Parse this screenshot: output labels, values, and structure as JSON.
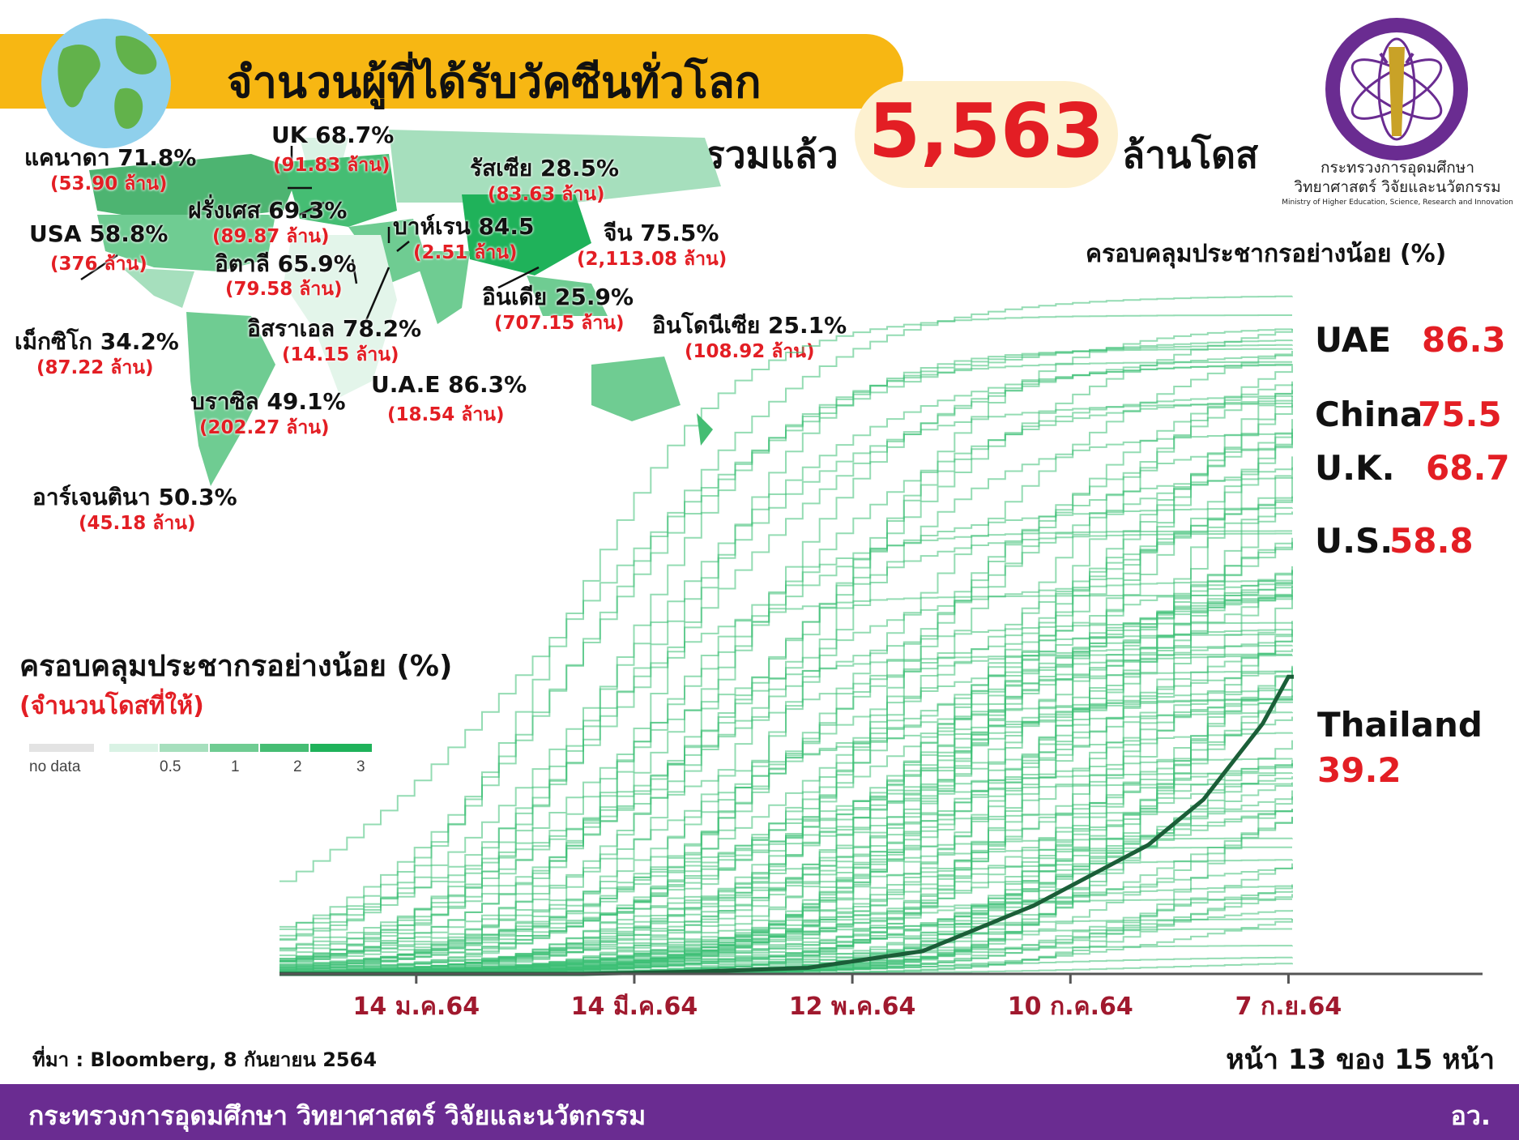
{
  "header": {
    "title": "จำนวนผู้ที่ได้รับวัคซีนทั่วโลก",
    "total_prefix": "รวมแล้ว",
    "total_value": "5,563",
    "total_unit": "ล้านโดส"
  },
  "ministry": {
    "name_th_line1": "กระทรวงการอุดมศึกษา",
    "name_th_line2": "วิทยาศาสตร์ วิจัยและนวัตกรรม",
    "name_en": "Ministry of Higher Education, Science, Research and Innovation"
  },
  "map_labels": [
    {
      "name": "แคนาดา 71.8%",
      "dose": "(53.90 ล้าน)"
    },
    {
      "name": "UK 68.7%",
      "dose": "(91.83 ล้าน)"
    },
    {
      "name": "รัสเซีย 28.5%",
      "dose": "(83.63 ล้าน)"
    },
    {
      "name": "ฝรั่งเศส 69.3%",
      "dose": "(89.87 ล้าน)"
    },
    {
      "name": "USA 58.8%",
      "dose": "(376 ล้าน)"
    },
    {
      "name": "บาห์เรน 84.5",
      "dose": "(2.51 ล้าน)"
    },
    {
      "name": "จีน 75.5%",
      "dose": "(2,113.08 ล้าน)"
    },
    {
      "name": "อิตาลี 65.9%",
      "dose": "(79.58 ล้าน)"
    },
    {
      "name": "อินเดีย 25.9%",
      "dose": "(707.15 ล้าน)"
    },
    {
      "name": "อิสราเอล 78.2%",
      "dose": "(14.15 ล้าน)"
    },
    {
      "name": "อินโดนีเซีย 25.1%",
      "dose": "(108.92 ล้าน)"
    },
    {
      "name": "เม็กซิโก 34.2%",
      "dose": "(87.22 ล้าน)"
    },
    {
      "name": "U.A.E 86.3%",
      "dose": "(18.54 ล้าน)"
    },
    {
      "name": "บราซิล 49.1%",
      "dose": "(202.27 ล้าน)"
    },
    {
      "name": "อาร์เจนตินา 50.3%",
      "dose": "(45.18 ล้าน)"
    }
  ],
  "left_heading": "ครอบคลุมประชากรอย่างน้อย (%)",
  "left_subheading": "(จำนวนโดสที่ให้)",
  "legend": {
    "no_data": "no data",
    "ticks": [
      "0.5",
      "1",
      "2",
      "3"
    ],
    "colors": [
      "#e3e3e3",
      "#d9f2e4",
      "#a6dfbd",
      "#6fcc92",
      "#45bd73",
      "#1fb25a"
    ]
  },
  "right_heading": "ครอบคลุมประชากรอย่างน้อย (%)",
  "highlights": [
    {
      "name": "UAE",
      "value": "86.3"
    },
    {
      "name": "China",
      "value": "75.5"
    },
    {
      "name": "U.K.",
      "value": "68.7"
    },
    {
      "name": "U.S.",
      "value": "58.8"
    },
    {
      "name": "Thailand",
      "value": "39.2"
    }
  ],
  "colors": {
    "title_bar": "#f7b713",
    "accent_red": "#e31e24",
    "footer": "#6a2c91",
    "line": "#3cbf74",
    "thailand_line": "#1b5e38",
    "axis_label": "#a0192e"
  },
  "chart_data": {
    "type": "line",
    "x_labels": [
      "14 ม.ค.64",
      "14 มี.ค.64",
      "12 พ.ค.64",
      "10 ก.ค.64",
      "7 ก.ย.64"
    ],
    "x_range": [
      "2020-12-08",
      "2021-09-08"
    ],
    "y_range": [
      0,
      90
    ],
    "series": [
      {
        "name": "UAE",
        "final_value": 86.3
      },
      {
        "name": "China",
        "final_value": 75.5
      },
      {
        "name": "U.K.",
        "final_value": 68.7
      },
      {
        "name": "U.S.",
        "final_value": 58.8
      },
      {
        "name": "Thailand",
        "final_value": 39.2,
        "points": [
          [
            "2021-02-28",
            0
          ],
          [
            "2021-03-31",
            0.3
          ],
          [
            "2021-04-30",
            0.8
          ],
          [
            "2021-05-31",
            3
          ],
          [
            "2021-06-30",
            9
          ],
          [
            "2021-07-31",
            17
          ],
          [
            "2021-08-15",
            23
          ],
          [
            "2021-08-31",
            33
          ],
          [
            "2021-09-07",
            39.2
          ]
        ]
      }
    ],
    "note_background_lines": "many other countries (unlabeled)"
  },
  "footer": {
    "source": "ที่มา : Bloomberg, 8 กันยายน 2564",
    "page": "หน้า 13 ของ 15 หน้า",
    "ministry": "กระทรวงการอุดมศึกษา วิทยาศาสตร์ วิจัยและนวัตกรรม",
    "office": "อว."
  }
}
